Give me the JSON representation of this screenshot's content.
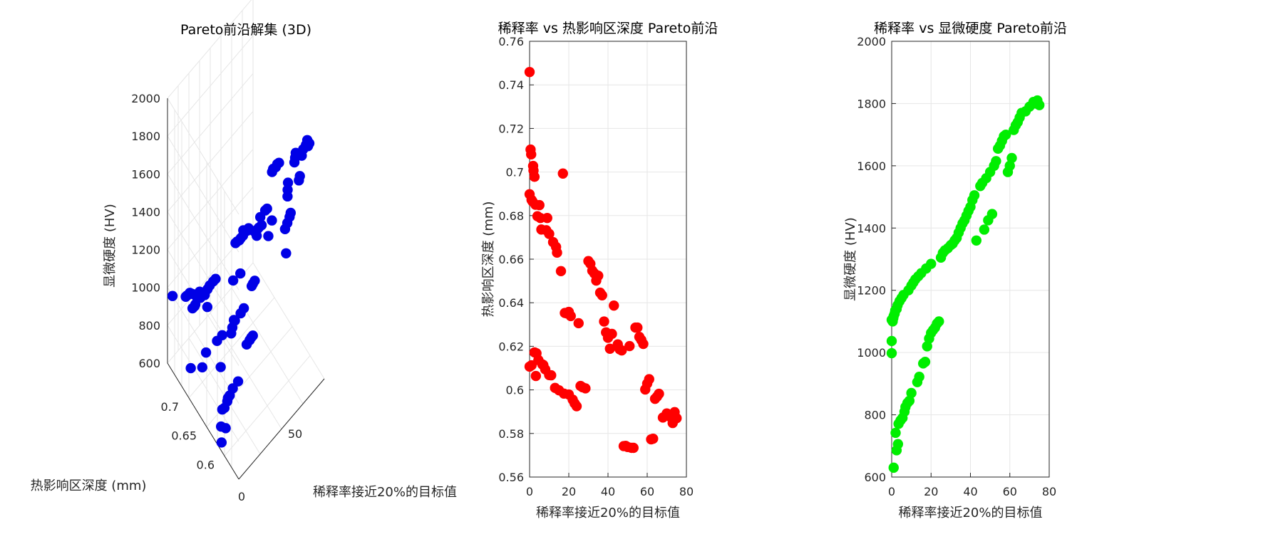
{
  "chart_data": [
    {
      "type": "scatter3d",
      "title": "Pareto前沿解集 (3D)",
      "xlabel": "稀释率接近20%的目标值",
      "ylabel": "热影响区深度 (mm)",
      "zlabel": "显微硬度 (HV)",
      "xlim": [
        0,
        80
      ],
      "ylim": [
        0.56,
        0.76
      ],
      "zlim": [
        600,
        2000
      ],
      "xticks": [
        "0",
        "50"
      ],
      "yticks": [
        "0.6",
        "0.65",
        "0.7"
      ],
      "zticks": [
        "600",
        "800",
        "1000",
        "1200",
        "1400",
        "1600",
        "1800",
        "2000"
      ],
      "grid": true,
      "color": "#0000e6"
    },
    {
      "type": "scatter",
      "title": "稀释率 vs 热影响区深度 Pareto前沿",
      "xlabel": "稀释率接近20%的目标值",
      "ylabel": "热影响区深度 (mm)",
      "xlim": [
        0,
        80
      ],
      "ylim": [
        0.56,
        0.76
      ],
      "xticks": [
        "0",
        "20",
        "40",
        "60",
        "80"
      ],
      "yticks": [
        "0.56",
        "0.58",
        "0.6",
        "0.62",
        "0.64",
        "0.66",
        "0.68",
        "0.7",
        "0.72",
        "0.74",
        "0.76"
      ],
      "grid": true,
      "color": "#ff0000"
    },
    {
      "type": "scatter",
      "title": "稀释率 vs 显微硬度 Pareto前沿",
      "xlabel": "稀释率接近20%的目标值",
      "ylabel": "显微硬度 (HV)",
      "xlim": [
        0,
        80
      ],
      "ylim": [
        600,
        2000
      ],
      "xticks": [
        "0",
        "20",
        "40",
        "60",
        "80"
      ],
      "yticks": [
        "600",
        "800",
        "1000",
        "1200",
        "1400",
        "1600",
        "1800",
        "2000"
      ],
      "grid": true,
      "color": "#00ee00"
    }
  ],
  "points": [
    [
      0.0,
      0.7459,
      998
    ],
    [
      0.0,
      0.6107,
      1037
    ],
    [
      0.0,
      0.6898,
      1105
    ],
    [
      0.5,
      0.7103,
      1100
    ],
    [
      0.8,
      0.7081,
      1110
    ],
    [
      1.0,
      0.6113,
      630
    ],
    [
      1.0,
      0.6872,
      1117
    ],
    [
      1.5,
      0.6865,
      1125
    ],
    [
      1.8,
      0.7028,
      1135
    ],
    [
      2.0,
      0.7007,
      742
    ],
    [
      2.5,
      0.6978,
      1140
    ],
    [
      2.5,
      0.6172,
      686
    ],
    [
      3.0,
      0.685,
      1152
    ],
    [
      3.2,
      0.6064,
      706
    ],
    [
      3.5,
      0.6168,
      771
    ],
    [
      4.0,
      0.6797,
      1165
    ],
    [
      4.5,
      0.6137,
      782
    ],
    [
      5.0,
      0.6848,
      1175
    ],
    [
      5.5,
      0.6789,
      790
    ],
    [
      6.0,
      0.6736,
      1185
    ],
    [
      6.5,
      0.6117,
      810
    ],
    [
      7.0,
      0.6114,
      825
    ],
    [
      8.0,
      0.6094,
      838
    ],
    [
      8.5,
      0.6733,
      1200
    ],
    [
      9.0,
      0.6789,
      845
    ],
    [
      10.0,
      0.6068,
      870
    ],
    [
      10.0,
      0.6716,
      1215
    ],
    [
      11.0,
      0.6067,
      1225
    ],
    [
      12.0,
      0.6678,
      1235
    ],
    [
      13.0,
      0.6009,
      905
    ],
    [
      13.5,
      0.6656,
      1245
    ],
    [
      14.0,
      0.663,
      922
    ],
    [
      15.0,
      0.5998,
      1255
    ],
    [
      16.0,
      0.6545,
      965
    ],
    [
      17.0,
      0.6993,
      970
    ],
    [
      17.5,
      0.5983,
      1270
    ],
    [
      18.0,
      0.6353,
      1020
    ],
    [
      19.0,
      0.6351,
      1045
    ],
    [
      20.0,
      0.5979,
      1063
    ],
    [
      20.0,
      0.6358,
      1285
    ],
    [
      21.0,
      0.6339,
      1072
    ],
    [
      22.0,
      0.5955,
      1080
    ],
    [
      23.0,
      0.5938,
      1093
    ],
    [
      24.0,
      0.5925,
      1100
    ],
    [
      25.0,
      0.6306,
      1305
    ],
    [
      26.0,
      0.6018,
      1320
    ],
    [
      27.0,
      0.6012,
      1328
    ],
    [
      28.5,
      0.6007,
      1335
    ],
    [
      30.0,
      0.6591,
      1345
    ],
    [
      31.0,
      0.6579,
      1350
    ],
    [
      32.0,
      0.6547,
      1360
    ],
    [
      33.0,
      0.6535,
      1368
    ],
    [
      34.0,
      0.6502,
      1385
    ],
    [
      35.0,
      0.6524,
      1400
    ],
    [
      36.0,
      0.6446,
      1415
    ],
    [
      37.0,
      0.6434,
      1425
    ],
    [
      38.0,
      0.6314,
      1440
    ],
    [
      39.0,
      0.6264,
      1455
    ],
    [
      40.0,
      0.6239,
      1468
    ],
    [
      41.0,
      0.6189,
      1490
    ],
    [
      42.0,
      0.6257,
      1505
    ],
    [
      43.0,
      0.6387,
      1360
    ],
    [
      45.0,
      0.6209,
      1535
    ],
    [
      46.0,
      0.6186,
      1545
    ],
    [
      47.0,
      0.6181,
      1395
    ],
    [
      48.0,
      0.5742,
      1560
    ],
    [
      49.0,
      0.5743,
      1425
    ],
    [
      50.0,
      0.5738,
      1580
    ],
    [
      51.0,
      0.6201,
      1445
    ],
    [
      52.0,
      0.5734,
      1600
    ],
    [
      53.0,
      0.5734,
      1615
    ],
    [
      54.0,
      0.6286,
      1655
    ],
    [
      55.0,
      0.6286,
      1665
    ],
    [
      56.0,
      0.6243,
      1680
    ],
    [
      57.0,
      0.6229,
      1695
    ],
    [
      58.0,
      0.6211,
      1700
    ],
    [
      59.0,
      0.6002,
      1580
    ],
    [
      60.0,
      0.6029,
      1600
    ],
    [
      61.0,
      0.6049,
      1625
    ],
    [
      62.0,
      0.5773,
      1715
    ],
    [
      63.0,
      0.5776,
      1730
    ],
    [
      64.0,
      0.5959,
      1740
    ],
    [
      65.0,
      0.5969,
      1755
    ],
    [
      66.0,
      0.5982,
      1770
    ],
    [
      68.0,
      0.5873,
      1775
    ],
    [
      70.0,
      0.5892,
      1790
    ],
    [
      72.0,
      0.5875,
      1805
    ],
    [
      73.0,
      0.5848,
      1800
    ],
    [
      74.0,
      0.5898,
      1810
    ],
    [
      75.0,
      0.587,
      1795
    ]
  ]
}
